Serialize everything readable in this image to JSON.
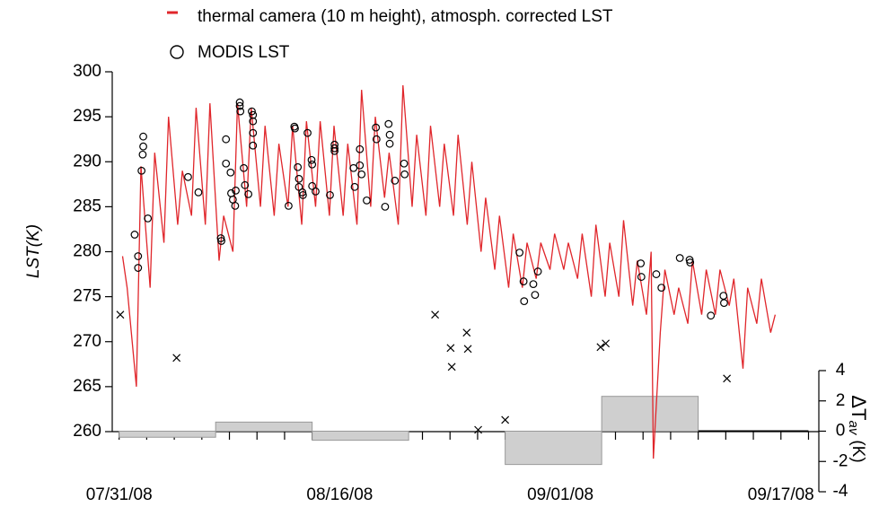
{
  "chart_data": {
    "type": "line",
    "legend": "top",
    "ylabel": "LST(K)",
    "y2label": {
      "symbol": "ΔT",
      "subscript": "av",
      "unit": "(K)"
    },
    "xlim": [
      "07/30/08 12:00",
      "09/19/08 18:00"
    ],
    "xticks": [
      "07/31/08",
      "08/16/08",
      "09/01/08",
      "09/17/08"
    ],
    "xminor_ticks": [
      "08/02/08",
      "08/04/08",
      "08/06/08",
      "08/08/08",
      "08/10/08",
      "08/12/08",
      "08/14/08",
      "08/18/08",
      "08/20/08",
      "08/22/08",
      "08/24/08",
      "08/26/08",
      "08/28/08",
      "08/30/08",
      "09/03/08",
      "09/05/08",
      "09/07/08",
      "09/09/08",
      "09/11/08",
      "09/13/08",
      "09/15/08",
      "09/19/08"
    ],
    "ylim": [
      260,
      300
    ],
    "yticks": [
      260,
      265,
      270,
      275,
      280,
      285,
      290,
      295,
      300
    ],
    "y2lim": [
      -4,
      4
    ],
    "y2ticks": [
      -4,
      -2,
      0,
      2,
      4
    ],
    "series": [
      {
        "name": "thermal camera (10 m height), atmosph. corrected LST",
        "type": "line",
        "color": "#e0262b",
        "x": [
          "07/31/08 06:00",
          "07/31/08 14:00",
          "08/01/08 06:00",
          "08/01/08 14:00",
          "08/02/08 06:00",
          "08/02/08 14:00",
          "08/03/08 06:00",
          "08/03/08 14:00",
          "08/04/08 06:00",
          "08/04/08 14:00",
          "08/05/08 06:00",
          "08/05/08 14:00",
          "08/06/08 06:00",
          "08/06/08 14:00",
          "08/07/08 06:00",
          "08/07/08 14:00",
          "08/08/08 06:00",
          "08/08/08 14:00",
          "08/09/08 06:00",
          "08/09/08 14:00",
          "08/10/08 06:00",
          "08/10/08 14:00",
          "08/11/08 06:00",
          "08/11/08 14:00",
          "08/12/08 06:00",
          "08/12/08 14:00",
          "08/13/08 06:00",
          "08/13/08 14:00",
          "08/14/08 06:00",
          "08/14/08 14:00",
          "08/15/08 06:00",
          "08/15/08 14:00",
          "08/16/08 06:00",
          "08/16/08 14:00",
          "08/17/08 06:00",
          "08/17/08 14:00",
          "08/18/08 06:00",
          "08/18/08 14:00",
          "08/19/08 06:00",
          "08/19/08 14:00",
          "08/20/08 06:00",
          "08/20/08 14:00",
          "08/21/08 06:00",
          "08/21/08 14:00",
          "08/22/08 06:00",
          "08/22/08 14:00",
          "08/23/08 06:00",
          "08/23/08 14:00",
          "08/24/08 06:00",
          "08/24/08 14:00",
          "08/25/08 06:00",
          "08/25/08 14:00",
          "08/26/08 06:00",
          "08/26/08 14:00",
          "08/27/08 06:00",
          "08/27/08 14:00",
          "08/28/08 06:00",
          "08/28/08 14:00",
          "08/29/08 06:00",
          "08/29/08 14:00",
          "08/30/08 06:00",
          "08/30/08 14:00",
          "08/31/08 06:00",
          "08/31/08 14:00",
          "09/01/08 06:00",
          "09/01/08 14:00",
          "09/02/08 06:00",
          "09/02/08 14:00",
          "09/03/08 06:00",
          "09/03/08 14:00",
          "09/04/08 06:00",
          "09/04/08 14:00",
          "09/05/08 06:00",
          "09/05/08 14:00",
          "09/06/08 06:00",
          "09/06/08 14:00",
          "09/07/08 06:00",
          "09/07/08 14:00",
          "09/07/08 18:00",
          "09/08/08 06:00",
          "09/08/08 14:00",
          "09/09/08 06:00",
          "09/09/08 14:00",
          "09/10/08 06:00",
          "09/10/08 14:00",
          "09/11/08 06:00",
          "09/11/08 14:00",
          "09/12/08 06:00",
          "09/12/08 14:00",
          "09/13/08 06:00",
          "09/13/08 14:00",
          "09/14/08 06:00",
          "09/14/08 14:00",
          "09/15/08 06:00",
          "09/15/08 14:00",
          "09/16/08 06:00",
          "09/16/08 14:00"
        ],
        "values": [
          279.5,
          276,
          265,
          289.5,
          276,
          291,
          281,
          295,
          283,
          289,
          284,
          296,
          283,
          296.5,
          279,
          284,
          280,
          296.5,
          285,
          296,
          285,
          294,
          284,
          292,
          285,
          294,
          283,
          294.5,
          285,
          294.5,
          284,
          294,
          284,
          292,
          283,
          298,
          285,
          295,
          286,
          291,
          283,
          298.5,
          285,
          293,
          284,
          294,
          285,
          292,
          284,
          293,
          283,
          290,
          280,
          286,
          278,
          284,
          276,
          282,
          276,
          281,
          277,
          281,
          278,
          282,
          278,
          281,
          277,
          282,
          275,
          283,
          275,
          281,
          275,
          283.5,
          274,
          279,
          273,
          280,
          257,
          271,
          278,
          273,
          276,
          272,
          279,
          273,
          278,
          273,
          278,
          274,
          277,
          267,
          276,
          272,
          277,
          271,
          273
        ]
      },
      {
        "name": "MODIS LST",
        "type": "scatter",
        "marker": "circle",
        "color": "#000000",
        "x": [
          "08/01/08 03:00",
          "08/01/08 09:00",
          "08/01/08 09:00",
          "08/01/08 15:00",
          "08/01/08 17:00",
          "08/01/08 18:00",
          "08/01/08 18:00",
          "08/02/08 02:00",
          "08/05/08 00:00",
          "08/05/08 18:00",
          "08/07/08 09:00",
          "08/07/08 10:00",
          "08/07/08 18:00",
          "08/07/08 18:00",
          "08/08/08 02:00",
          "08/08/08 03:00",
          "08/08/08 06:00",
          "08/08/08 10:00",
          "08/08/08 11:00",
          "08/08/08 18:00",
          "08/08/08 18:00",
          "08/08/08 19:00",
          "08/09/08 01:00",
          "08/09/08 03:00",
          "08/09/08 09:00",
          "08/09/08 15:00",
          "08/09/08 17:00",
          "08/09/08 17:00",
          "08/09/08 17:00",
          "08/09/08 17:00",
          "08/12/08 07:00",
          "08/12/08 17:00",
          "08/12/08 18:00",
          "08/12/08 23:00",
          "08/13/08 01:00",
          "08/13/08 01:00",
          "08/13/08 07:00",
          "08/13/08 08:00",
          "08/13/08 16:00",
          "08/13/08 23:00",
          "08/14/08 00:00",
          "08/14/08 00:00",
          "08/14/08 06:00",
          "08/15/08 07:00",
          "08/15/08 15:00",
          "08/15/08 15:00",
          "08/15/08 15:00",
          "08/17/08 00:00",
          "08/17/08 02:00",
          "08/17/08 11:00",
          "08/17/08 11:00",
          "08/17/08 14:00",
          "08/17/08 23:00",
          "08/18/08 15:00",
          "08/18/08 16:00",
          "08/19/08 07:00",
          "08/19/08 13:00",
          "08/19/08 15:00",
          "08/19/08 15:00",
          "08/20/08 00:00",
          "08/20/08 16:00",
          "08/20/08 17:00",
          "08/29/08 01:00",
          "08/29/08 08:00",
          "08/29/08 09:00",
          "08/30/08 01:00",
          "08/30/08 04:00",
          "08/30/08 09:00",
          "09/06/08 20:00",
          "09/06/08 21:00",
          "09/07/08 23:00",
          "09/08/08 08:00",
          "09/09/08 16:00",
          "09/10/08 09:00",
          "09/10/08 10:00",
          "09/11/08 22:00",
          "09/12/08 20:00",
          "09/12/08 21:00"
        ],
        "values": [
          281.9,
          279.5,
          278.2,
          289.0,
          290.8,
          291.7,
          292.8,
          283.7,
          288.3,
          286.6,
          281.5,
          281.2,
          292.5,
          289.8,
          288.8,
          286.5,
          285.8,
          285.1,
          286.8,
          296.6,
          296.2,
          295.6,
          289.3,
          287.4,
          286.4,
          295.6,
          295.2,
          294.5,
          293.2,
          291.8,
          285.1,
          293.9,
          293.7,
          289.4,
          288.1,
          287.2,
          286.6,
          286.3,
          293.2,
          290.2,
          289.7,
          287.3,
          286.7,
          286.3,
          291.9,
          291.5,
          291.2,
          289.3,
          287.2,
          291.4,
          289.6,
          288.6,
          285.7,
          293.8,
          292.5,
          285.0,
          294.2,
          293.0,
          292.0,
          287.9,
          289.8,
          288.6,
          279.9,
          276.7,
          274.5,
          276.4,
          275.2,
          277.8,
          278.7,
          277.2,
          277.5,
          276.0,
          279.3,
          279.1,
          278.8,
          272.9,
          275.1,
          274.3
        ]
      },
      {
        "type": "scatter",
        "marker": "x",
        "color": "#000000",
        "x": [
          "07/31/08 02:00",
          "08/04/08 04:00",
          "08/22/08 22:00",
          "08/24/08 01:00",
          "08/24/08 03:00",
          "08/25/08 05:00",
          "08/25/08 07:00",
          "08/26/08 01:00",
          "08/28/08 00:00",
          "09/03/08 22:00",
          "09/04/08 07:00",
          "09/13/08 02:00"
        ],
        "values": [
          273.0,
          268.2,
          273.0,
          269.3,
          267.2,
          271.0,
          269.2,
          260.2,
          261.3,
          269.4,
          269.8,
          265.9
        ]
      },
      {
        "type": "bar",
        "axis": "y2",
        "color": "#cfcfcf",
        "bins": [
          "07/31/08",
          "08/07/08",
          "08/14/08",
          "08/21/08",
          "08/28/08",
          "09/04/08",
          "09/11/08",
          "09/19/08"
        ],
        "values": [
          -0.4,
          0.6,
          -0.6,
          null,
          -2.2,
          2.3,
          0
        ]
      }
    ]
  }
}
